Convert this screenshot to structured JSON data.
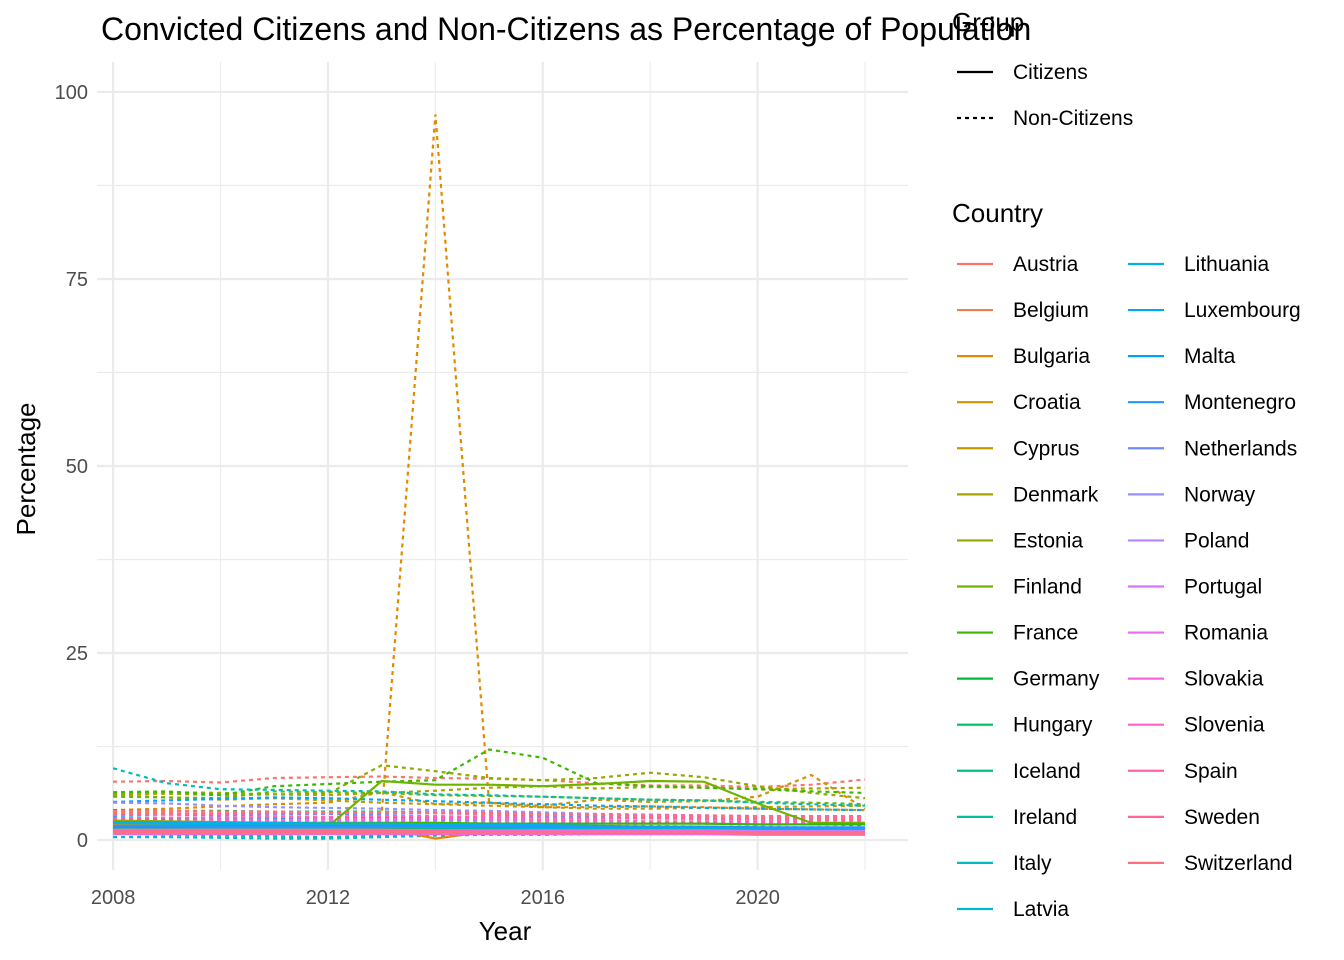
{
  "chart_data": {
    "type": "line",
    "title": "Convicted Citizens and Non-Citizens as Percentage of Population",
    "xlabel": "Year",
    "ylabel": "Percentage",
    "xlim": [
      2007.7,
      2022.8
    ],
    "ylim": [
      -4,
      104
    ],
    "x_ticks": [
      2008,
      2012,
      2016,
      2020
    ],
    "y_ticks": [
      0,
      25,
      50,
      75,
      100
    ],
    "grid": true,
    "legend_group_title": "Group",
    "legend_groups": [
      "Citizens",
      "Non-Citizens"
    ],
    "legend_country_title": "Country",
    "x": [
      2008,
      2009,
      2010,
      2011,
      2012,
      2013,
      2014,
      2015,
      2016,
      2017,
      2018,
      2019,
      2020,
      2021,
      2022
    ],
    "series": [
      {
        "name": "Austria",
        "color": "#F8766D",
        "citizens": [
          1.1,
          1.1,
          1.1,
          1.1,
          1.1,
          1.1,
          1.0,
          1.0,
          1.0,
          1.0,
          1.0,
          1.0,
          0.9,
          0.9,
          0.9
        ],
        "non_citizens": [
          7.8,
          7.9,
          7.7,
          8.3,
          8.4,
          8.5,
          8.3,
          8.2,
          8.0,
          7.6,
          7.3,
          7.3,
          7.1,
          7.4,
          8.1
        ]
      },
      {
        "name": "Belgium",
        "color": "#F07E4D",
        "citizens": [
          1.5,
          1.5,
          1.5,
          1.5,
          1.5,
          1.5,
          1.5,
          1.5,
          1.5,
          1.5,
          1.5,
          1.5,
          1.4,
          1.4,
          1.4
        ],
        "non_citizens": [
          3.6,
          3.6,
          3.5,
          3.6,
          3.7,
          3.7,
          3.6,
          3.6,
          3.5,
          3.3,
          3.2,
          3.1,
          3.0,
          3.0,
          3.1
        ]
      },
      {
        "name": "Bulgaria",
        "color": "#E38900",
        "citizens": [
          2.0,
          2.0,
          2.0,
          2.0,
          1.9,
          1.7,
          0.2,
          1.2,
          1.3,
          1.3,
          1.3,
          1.3,
          1.2,
          1.2,
          1.2
        ],
        "non_citizens": [
          2.5,
          2.6,
          2.7,
          2.8,
          3.0,
          3.5,
          97.0,
          5.0,
          4.4,
          4.4,
          4.5,
          4.4,
          4.2,
          4.1,
          4.0
        ]
      },
      {
        "name": "Croatia",
        "color": "#D39200",
        "citizens": [
          2.1,
          2.1,
          2.1,
          2.0,
          2.0,
          2.0,
          1.9,
          1.9,
          1.8,
          1.8,
          1.7,
          1.7,
          1.6,
          1.6,
          1.6
        ],
        "non_citizens": [
          4.0,
          4.2,
          4.5,
          4.8,
          5.0,
          6.4,
          4.8,
          5.0,
          4.6,
          5.4,
          5.1,
          5.2,
          5.8,
          8.7,
          4.2
        ]
      },
      {
        "name": "Cyprus",
        "color": "#C09B00",
        "citizens": [
          1.7,
          1.7,
          1.6,
          1.6,
          1.6,
          1.6,
          1.6,
          1.5,
          1.5,
          1.5,
          1.5,
          1.4,
          1.4,
          1.4,
          1.4
        ],
        "non_citizens": [
          6.0,
          5.7,
          5.4,
          5.6,
          5.3,
          5.0,
          4.8,
          4.6,
          4.4,
          4.2,
          4.2,
          4.3,
          4.4,
          4.5,
          4.6
        ]
      },
      {
        "name": "Denmark",
        "color": "#AAA200",
        "citizens": [
          1.7,
          1.7,
          1.7,
          1.7,
          1.7,
          1.7,
          1.7,
          1.6,
          1.6,
          1.6,
          1.6,
          1.6,
          1.5,
          1.5,
          1.5
        ],
        "non_citizens": [
          6.1,
          6.2,
          6.0,
          6.1,
          6.0,
          6.3,
          6.6,
          7.0,
          7.2,
          6.9,
          7.1,
          7.0,
          6.8,
          6.9,
          7.0
        ]
      },
      {
        "name": "Estonia",
        "color": "#8FAA00",
        "citizens": [
          2.6,
          2.5,
          2.4,
          2.3,
          2.2,
          2.1,
          2.0,
          1.9,
          1.8,
          1.7,
          1.6,
          1.5,
          1.4,
          1.3,
          1.3
        ],
        "non_citizens": [
          6.2,
          6.4,
          6.3,
          6.1,
          6.2,
          10.0,
          9.2,
          8.3,
          8.0,
          8.3,
          9.0,
          8.4,
          7.2,
          6.3,
          5.6
        ]
      },
      {
        "name": "Finland",
        "color": "#6EB300",
        "citizens": [
          1.8,
          1.8,
          1.8,
          1.8,
          1.8,
          7.9,
          7.4,
          7.4,
          7.2,
          7.5,
          7.9,
          7.8,
          4.9,
          2.3,
          2.3
        ],
        "non_citizens": [
          5.8,
          5.7,
          5.6,
          6.5,
          6.4,
          6.3,
          6.0,
          5.9,
          5.8,
          5.6,
          5.4,
          5.3,
          5.1,
          5.0,
          4.8
        ]
      },
      {
        "name": "France",
        "color": "#3EB700",
        "citizens": [
          2.3,
          2.3,
          2.3,
          2.3,
          2.3,
          2.3,
          2.3,
          2.2,
          2.2,
          2.2,
          2.2,
          2.2,
          2.1,
          2.1,
          2.1
        ],
        "non_citizens": [
          6.4,
          6.5,
          6.0,
          7.2,
          7.5,
          7.8,
          8.0,
          12.1,
          11.0,
          7.6,
          7.2,
          7.0,
          6.8,
          6.5,
          6.3
        ]
      },
      {
        "name": "Germany",
        "color": "#00BA38",
        "citizens": [
          1.5,
          1.5,
          1.5,
          1.5,
          1.5,
          1.5,
          1.4,
          1.4,
          1.4,
          1.4,
          1.4,
          1.3,
          1.3,
          1.3,
          1.3
        ],
        "non_citizens": [
          4.0,
          3.9,
          3.9,
          3.8,
          3.8,
          3.8,
          3.7,
          3.6,
          3.5,
          3.3,
          3.2,
          3.1,
          3.0,
          3.0,
          2.9
        ]
      },
      {
        "name": "Hungary",
        "color": "#00BE67",
        "citizens": [
          1.6,
          1.6,
          1.5,
          1.5,
          1.5,
          1.4,
          1.4,
          1.4,
          1.3,
          1.3,
          1.2,
          1.2,
          1.1,
          1.1,
          1.1
        ],
        "non_citizens": [
          2.0,
          2.0,
          1.9,
          1.9,
          1.8,
          1.8,
          1.7,
          1.7,
          1.6,
          1.6,
          1.5,
          1.5,
          1.4,
          1.4,
          1.4
        ]
      },
      {
        "name": "Iceland",
        "color": "#00C086",
        "citizens": [
          1.2,
          1.2,
          1.2,
          1.2,
          1.2,
          1.2,
          1.2,
          1.1,
          1.1,
          1.1,
          1.1,
          1.1,
          1.0,
          1.0,
          1.0
        ],
        "non_citizens": [
          1.5,
          1.6,
          1.5,
          1.4,
          1.5,
          1.5,
          1.4,
          1.3,
          1.4,
          1.3,
          1.2,
          1.3,
          1.2,
          1.2,
          1.2
        ]
      },
      {
        "name": "Ireland",
        "color": "#00C0A3",
        "citizens": [
          1.0,
          1.0,
          1.0,
          1.0,
          1.0,
          1.0,
          1.0,
          1.0,
          1.0,
          1.0,
          1.0,
          1.0,
          0.9,
          0.9,
          0.9
        ],
        "non_citizens": [
          0.8,
          0.7,
          0.6,
          0.5,
          0.4,
          0.6,
          0.7,
          0.8,
          0.9,
          0.9,
          1.0,
          1.0,
          0.9,
          0.9,
          0.9
        ]
      },
      {
        "name": "Italy",
        "color": "#00BDBD",
        "citizens": [
          1.2,
          1.2,
          1.2,
          1.2,
          1.2,
          1.2,
          1.2,
          1.1,
          1.1,
          1.1,
          1.1,
          1.1,
          1.0,
          1.0,
          1.0
        ],
        "non_citizens": [
          9.6,
          7.6,
          6.8,
          6.7,
          6.6,
          6.5,
          6.1,
          6.0,
          5.8,
          5.6,
          5.4,
          5.3,
          5.0,
          4.8,
          4.6
        ]
      },
      {
        "name": "Latvia",
        "color": "#00B8D4",
        "citizens": [
          2.3,
          2.2,
          2.1,
          2.0,
          1.9,
          1.8,
          1.7,
          1.7,
          1.6,
          1.6,
          1.5,
          1.5,
          1.4,
          1.4,
          1.4
        ],
        "non_citizens": [
          0.4,
          0.4,
          0.3,
          0.2,
          0.2,
          0.4,
          0.6,
          0.7,
          0.7,
          0.8,
          0.8,
          0.8,
          0.8,
          0.8,
          0.8
        ]
      },
      {
        "name": "Lithuania",
        "color": "#00B2E7",
        "citizens": [
          2.4,
          2.4,
          2.3,
          2.3,
          2.2,
          2.2,
          2.1,
          2.0,
          2.0,
          1.9,
          1.8,
          1.8,
          1.7,
          1.6,
          1.6
        ],
        "non_citizens": [
          3.0,
          3.0,
          2.9,
          2.9,
          2.8,
          2.8,
          2.7,
          2.6,
          2.6,
          2.5,
          2.4,
          2.3,
          2.2,
          2.1,
          2.0
        ]
      },
      {
        "name": "Luxembourg",
        "color": "#00A9F4",
        "citizens": [
          1.2,
          1.2,
          1.2,
          1.2,
          1.2,
          1.2,
          1.2,
          1.1,
          1.1,
          1.1,
          1.1,
          1.1,
          1.0,
          1.0,
          1.0
        ],
        "non_citizens": [
          5.1,
          5.3,
          5.5,
          5.7,
          5.6,
          5.4,
          5.2,
          5.0,
          4.8,
          4.6,
          4.5,
          4.3,
          4.2,
          4.1,
          4.0
        ]
      },
      {
        "name": "Malta",
        "color": "#00A0FD",
        "citizens": [
          1.3,
          1.3,
          1.3,
          1.3,
          1.3,
          1.3,
          1.2,
          1.2,
          1.2,
          1.2,
          1.2,
          1.2,
          1.1,
          1.1,
          1.1
        ],
        "non_citizens": [
          2.7,
          2.8,
          2.8,
          2.9,
          2.9,
          3.0,
          3.0,
          3.1,
          3.0,
          3.0,
          2.9,
          2.9,
          2.8,
          2.8,
          2.7
        ]
      },
      {
        "name": "Montenegro",
        "color": "#2595FF",
        "citizens": [
          1.9,
          1.9,
          1.9,
          1.9,
          1.9,
          1.9,
          1.9,
          1.8,
          1.8,
          1.8,
          1.8,
          1.8,
          1.7,
          1.7,
          1.7
        ],
        "non_citizens": [
          2.2,
          2.3,
          2.3,
          2.4,
          2.4,
          2.5,
          2.5,
          2.4,
          2.4,
          2.3,
          2.3,
          2.2,
          2.2,
          2.1,
          2.1
        ]
      },
      {
        "name": "Netherlands",
        "color": "#6F8AFF",
        "citizens": [
          1.1,
          1.1,
          1.1,
          1.1,
          1.1,
          1.1,
          1.0,
          1.0,
          1.0,
          1.0,
          1.0,
          1.0,
          0.9,
          0.9,
          0.9
        ],
        "non_citizens": [
          3.3,
          3.4,
          3.3,
          3.4,
          3.5,
          3.5,
          3.6,
          3.4,
          3.2,
          3.2,
          3.1,
          3.1,
          3.0,
          3.0,
          3.0
        ]
      },
      {
        "name": "Norway",
        "color": "#9590FF",
        "citizens": [
          1.0,
          1.0,
          1.0,
          1.0,
          1.0,
          1.0,
          1.0,
          1.0,
          1.0,
          1.0,
          1.0,
          1.0,
          0.9,
          0.9,
          0.9
        ],
        "non_citizens": [
          5.0,
          4.9,
          4.6,
          4.4,
          4.3,
          4.2,
          4.0,
          3.9,
          3.7,
          3.5,
          3.4,
          3.3,
          3.2,
          3.2,
          3.1
        ]
      },
      {
        "name": "Poland",
        "color": "#B983FF",
        "citizens": [
          1.4,
          1.4,
          1.4,
          1.4,
          1.4,
          1.4,
          1.3,
          1.3,
          1.3,
          1.3,
          1.3,
          1.3,
          1.2,
          1.2,
          1.2
        ],
        "non_citizens": [
          1.8,
          1.8,
          1.9,
          1.9,
          1.9,
          2.0,
          2.0,
          1.9,
          1.9,
          1.8,
          1.8,
          1.7,
          1.7,
          1.6,
          1.6
        ]
      },
      {
        "name": "Portugal",
        "color": "#D575FE",
        "citizens": [
          0.9,
          0.9,
          0.9,
          0.9,
          0.9,
          0.9,
          0.9,
          0.9,
          0.9,
          0.9,
          0.9,
          0.9,
          0.8,
          0.8,
          0.8
        ],
        "non_citizens": [
          2.3,
          2.4,
          2.4,
          2.5,
          2.5,
          2.6,
          2.5,
          2.5,
          2.4,
          2.4,
          2.3,
          2.3,
          2.2,
          2.2,
          2.1
        ]
      },
      {
        "name": "Romania",
        "color": "#E76BF3",
        "citizens": [
          0.8,
          0.8,
          0.8,
          0.8,
          0.8,
          0.8,
          0.8,
          0.8,
          0.8,
          0.8,
          0.8,
          0.8,
          0.7,
          0.7,
          0.7
        ],
        "non_citizens": [
          1.2,
          1.2,
          1.3,
          1.3,
          1.3,
          1.4,
          1.4,
          1.3,
          1.3,
          1.3,
          1.2,
          1.2,
          1.2,
          1.1,
          1.1
        ]
      },
      {
        "name": "Slovakia",
        "color": "#F763E0",
        "citizens": [
          1.3,
          1.3,
          1.3,
          1.3,
          1.3,
          1.3,
          1.2,
          1.2,
          1.2,
          1.2,
          1.2,
          1.2,
          1.1,
          1.1,
          1.1
        ],
        "non_citizens": [
          1.9,
          1.9,
          2.0,
          2.0,
          2.0,
          2.1,
          2.1,
          2.0,
          2.0,
          1.9,
          1.9,
          1.8,
          1.8,
          1.7,
          1.7
        ]
      },
      {
        "name": "Slovenia",
        "color": "#FF61C9",
        "citizens": [
          1.0,
          1.0,
          1.0,
          1.0,
          1.0,
          1.0,
          1.0,
          1.0,
          1.0,
          1.0,
          1.0,
          1.0,
          0.9,
          0.9,
          0.9
        ],
        "non_citizens": [
          2.6,
          2.6,
          2.7,
          2.7,
          2.8,
          2.8,
          2.9,
          2.8,
          2.7,
          2.6,
          2.5,
          2.5,
          2.4,
          2.4,
          2.3
        ]
      },
      {
        "name": "Spain",
        "color": "#FF62B0",
        "citizens": [
          0.9,
          0.9,
          0.9,
          0.9,
          0.9,
          0.9,
          0.9,
          0.9,
          0.9,
          0.9,
          0.9,
          0.9,
          0.8,
          0.8,
          0.8
        ],
        "non_citizens": [
          2.9,
          3.0,
          3.0,
          3.1,
          3.1,
          3.2,
          3.2,
          3.1,
          3.0,
          2.9,
          2.9,
          2.8,
          2.7,
          2.7,
          2.6
        ]
      },
      {
        "name": "Sweden",
        "color": "#FF6694",
        "citizens": [
          1.2,
          1.2,
          1.2,
          1.2,
          1.2,
          1.2,
          1.2,
          1.1,
          1.1,
          1.1,
          1.1,
          1.1,
          1.0,
          1.0,
          1.0
        ],
        "non_citizens": [
          3.4,
          3.5,
          3.5,
          3.6,
          3.6,
          3.7,
          3.7,
          3.6,
          3.5,
          3.4,
          3.3,
          3.3,
          3.2,
          3.2,
          3.2
        ]
      },
      {
        "name": "Switzerland",
        "color": "#FC717F",
        "citizens": [
          1.0,
          1.0,
          1.0,
          1.0,
          1.0,
          1.0,
          1.0,
          1.0,
          1.0,
          1.0,
          1.0,
          1.0,
          0.9,
          0.9,
          0.9
        ],
        "non_citizens": [
          3.9,
          3.9,
          3.8,
          3.8,
          3.7,
          3.7,
          3.6,
          3.5,
          3.4,
          3.3,
          3.2,
          3.1,
          3.0,
          3.0,
          2.9
        ]
      }
    ]
  }
}
